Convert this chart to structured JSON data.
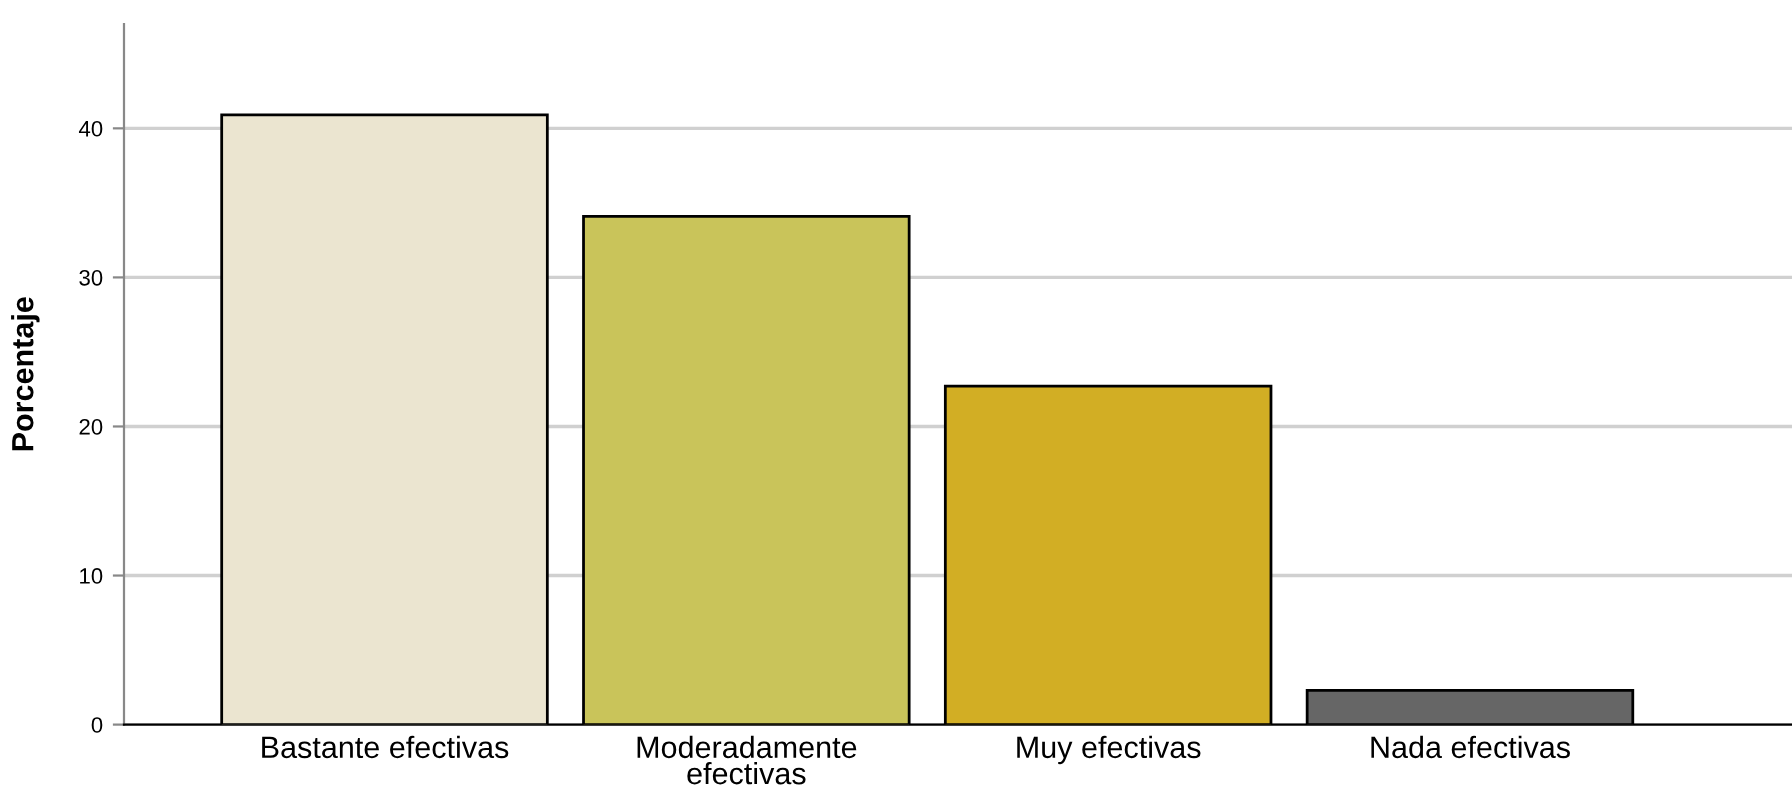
{
  "chart_data": {
    "type": "bar",
    "ylabel": "Porcentaje",
    "categories": [
      "Bastante efectivas",
      "Moderadamente\nefectivas",
      "Muy efectivas",
      "Nada efectivas"
    ],
    "values": [
      40.9,
      34.1,
      22.7,
      2.3
    ],
    "colors": [
      "#ebe5d0",
      "#c9c45a",
      "#d2ae24",
      "#666666"
    ],
    "ylim": [
      0,
      47
    ],
    "yticks": [
      0,
      10,
      20,
      30,
      40
    ],
    "grid": "y",
    "legend": false
  }
}
